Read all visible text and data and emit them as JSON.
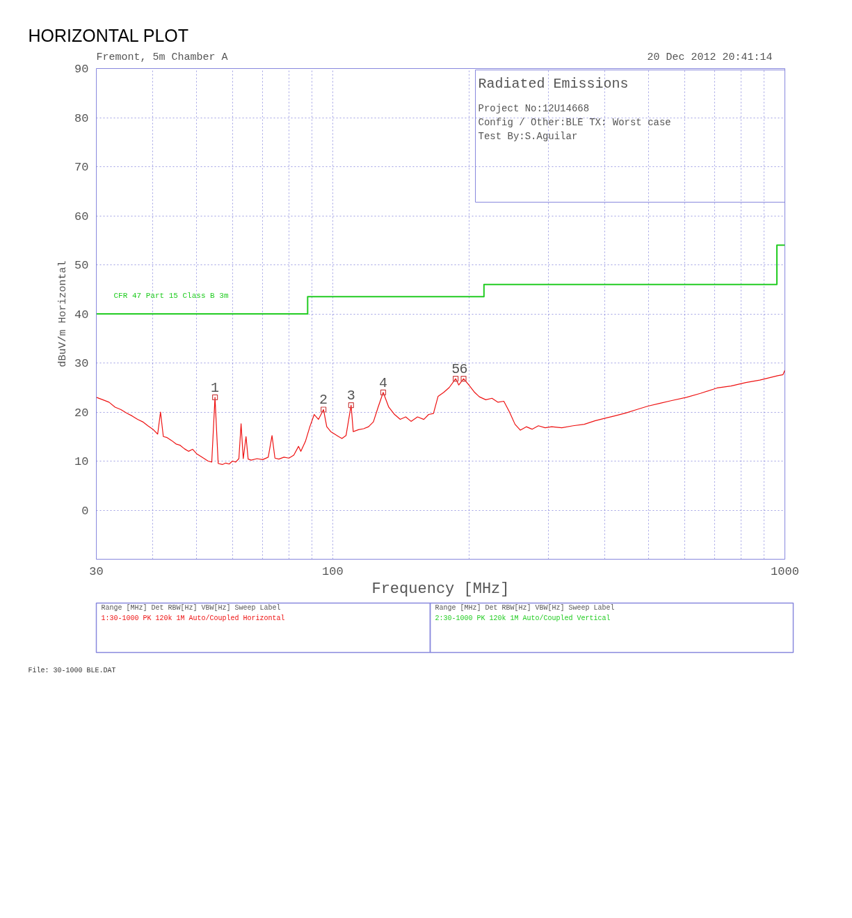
{
  "chart_data": {
    "type": "line",
    "title": "HORIZONTAL PLOT",
    "xlabel": "Frequency [MHz]",
    "ylabel": "dBuV/m Horizontal",
    "log": "x",
    "xlim": [
      30,
      1000
    ],
    "ylim": [
      -10,
      90
    ],
    "xticks": [
      30,
      {
        "value": 40,
        "label": null
      },
      {
        "value": 50,
        "label": null
      },
      {
        "value": 60,
        "label": null
      },
      {
        "value": 70,
        "label": null
      },
      {
        "value": 80,
        "label": null
      },
      {
        "value": 90,
        "label": null
      },
      100,
      {
        "value": 200,
        "label": null
      },
      {
        "value": 300,
        "label": null
      },
      {
        "value": 400,
        "label": null
      },
      {
        "value": 500,
        "label": null
      },
      {
        "value": 600,
        "label": null
      },
      {
        "value": 700,
        "label": null
      },
      {
        "value": 800,
        "label": null
      },
      {
        "value": 900,
        "label": null
      },
      1000
    ],
    "yticks": [
      0,
      10,
      20,
      30,
      40,
      50,
      60,
      70,
      80,
      90
    ],
    "grid": true,
    "series": [
      {
        "color": "#ee1111",
        "line_style": "solid",
        "x": [
          30,
          31,
          32,
          33,
          34,
          35,
          36,
          37,
          38,
          39,
          40,
          41,
          41.6,
          42.2,
          43,
          44,
          45,
          46,
          47,
          48,
          49,
          50,
          51,
          52,
          53,
          54,
          54.9,
          55.8,
          57,
          58,
          59,
          60,
          61,
          62,
          62.7,
          63.4,
          64.3,
          65,
          66,
          68,
          70,
          72,
          73.4,
          74.5,
          76,
          78,
          80,
          82,
          84,
          85,
          87,
          89,
          91,
          93,
          95.4,
          97,
          99,
          101,
          103,
          104.8,
          107,
          109.8,
          111,
          114,
          117,
          120,
          123,
          126,
          129.3,
          133,
          137,
          141,
          145,
          149,
          154,
          159,
          163,
          167,
          171,
          176,
          181,
          187,
          190,
          194.7,
          200,
          206,
          211,
          218,
          225,
          232,
          239,
          246,
          253,
          260,
          268,
          276,
          285,
          295,
          305,
          321,
          340,
          360,
          380,
          399,
          420,
          445,
          470,
          498,
          530,
          560,
          606,
          650,
          708,
          760,
          820,
          880,
          963,
          990,
          1000
        ],
        "values": [
          23,
          22.5,
          22,
          21,
          20.5,
          19.8,
          19.2,
          18.5,
          18,
          17.2,
          16.5,
          15.5,
          20,
          15,
          14.8,
          14.2,
          13.5,
          13.2,
          12.5,
          12,
          12.4,
          11.5,
          11,
          10.5,
          10,
          9.8,
          23,
          9.5,
          9.3,
          9.6,
          9.4,
          10,
          9.8,
          10.5,
          17.6,
          10.5,
          15,
          10.4,
          10.2,
          10.5,
          10.3,
          10.8,
          15.2,
          10.6,
          10.4,
          10.8,
          10.6,
          11.2,
          13,
          12,
          14,
          17,
          19.5,
          18.5,
          20.5,
          17,
          16,
          15.5,
          15,
          14.6,
          15.2,
          21.4,
          16,
          16.4,
          16.6,
          17,
          18,
          21,
          24,
          21,
          19.5,
          18.5,
          19,
          18.1,
          19,
          18.5,
          19.5,
          19.7,
          23.2,
          24,
          25,
          26.8,
          25.5,
          26.8,
          25.5,
          24,
          23.1,
          22.5,
          22.8,
          22,
          22.2,
          20,
          17.5,
          16.3,
          17,
          16.5,
          17.2,
          16.8,
          17,
          16.8,
          17.2,
          17.5,
          18.2,
          18.7,
          19.2,
          19.8,
          20.5,
          21.2,
          21.8,
          22.3,
          23,
          23.8,
          24.9,
          25.3,
          26,
          26.5,
          27.4,
          27.6,
          28.5
        ]
      },
      {
        "type": "line",
        "name": "CFR 47 Part 15 Class B 3m",
        "color": "#22cc22",
        "line_style": "solid",
        "x": [
          30,
          88,
          88,
          216,
          216,
          960,
          960,
          1000
        ],
        "values": [
          40,
          40,
          43.5,
          43.5,
          46,
          46,
          54,
          54
        ]
      },
      {
        "type": "scatter",
        "color": "#cc4444",
        "marker": "square",
        "x": [
          54.9,
          95.4,
          109.8,
          129.3,
          187,
          194.7
        ],
        "values": [
          23,
          20.5,
          21.4,
          24,
          26.8,
          26.8
        ]
      }
    ],
    "annotations": [
      "Fremont, 5m Chamber A",
      "20 Dec 2012   20:41:14",
      "Radiated Emissions",
      "Project No:12U14668",
      "Config / Other:BLE TX: Worst case",
      "Test By:S.Aguilar",
      "Range [MHz]     Det  RBW[Hz] VBW[Hz]   Sweep       Label",
      "1:30-1000        PK    120k    1M   Auto/Coupled  Horizontal",
      "Range [MHz]     Det  RBW[Hz] VBW[Hz]   Sweep       Label",
      "2:30-1000        PK    120k    1M   Auto/Coupled  Vertical",
      "File: 30-1000 BLE.DAT",
      {
        "text": "1",
        "x": 54.9,
        "y": 23
      },
      {
        "text": "2",
        "x": 95.4,
        "y": 20.5
      },
      {
        "text": "3",
        "x": 109.8,
        "y": 21.4
      },
      {
        "text": "4",
        "x": 129.3,
        "y": 24
      },
      {
        "text": "5",
        "x": 187,
        "y": 26.8
      },
      {
        "text": "6",
        "x": 194.7,
        "y": 26.8
      }
    ]
  }
}
